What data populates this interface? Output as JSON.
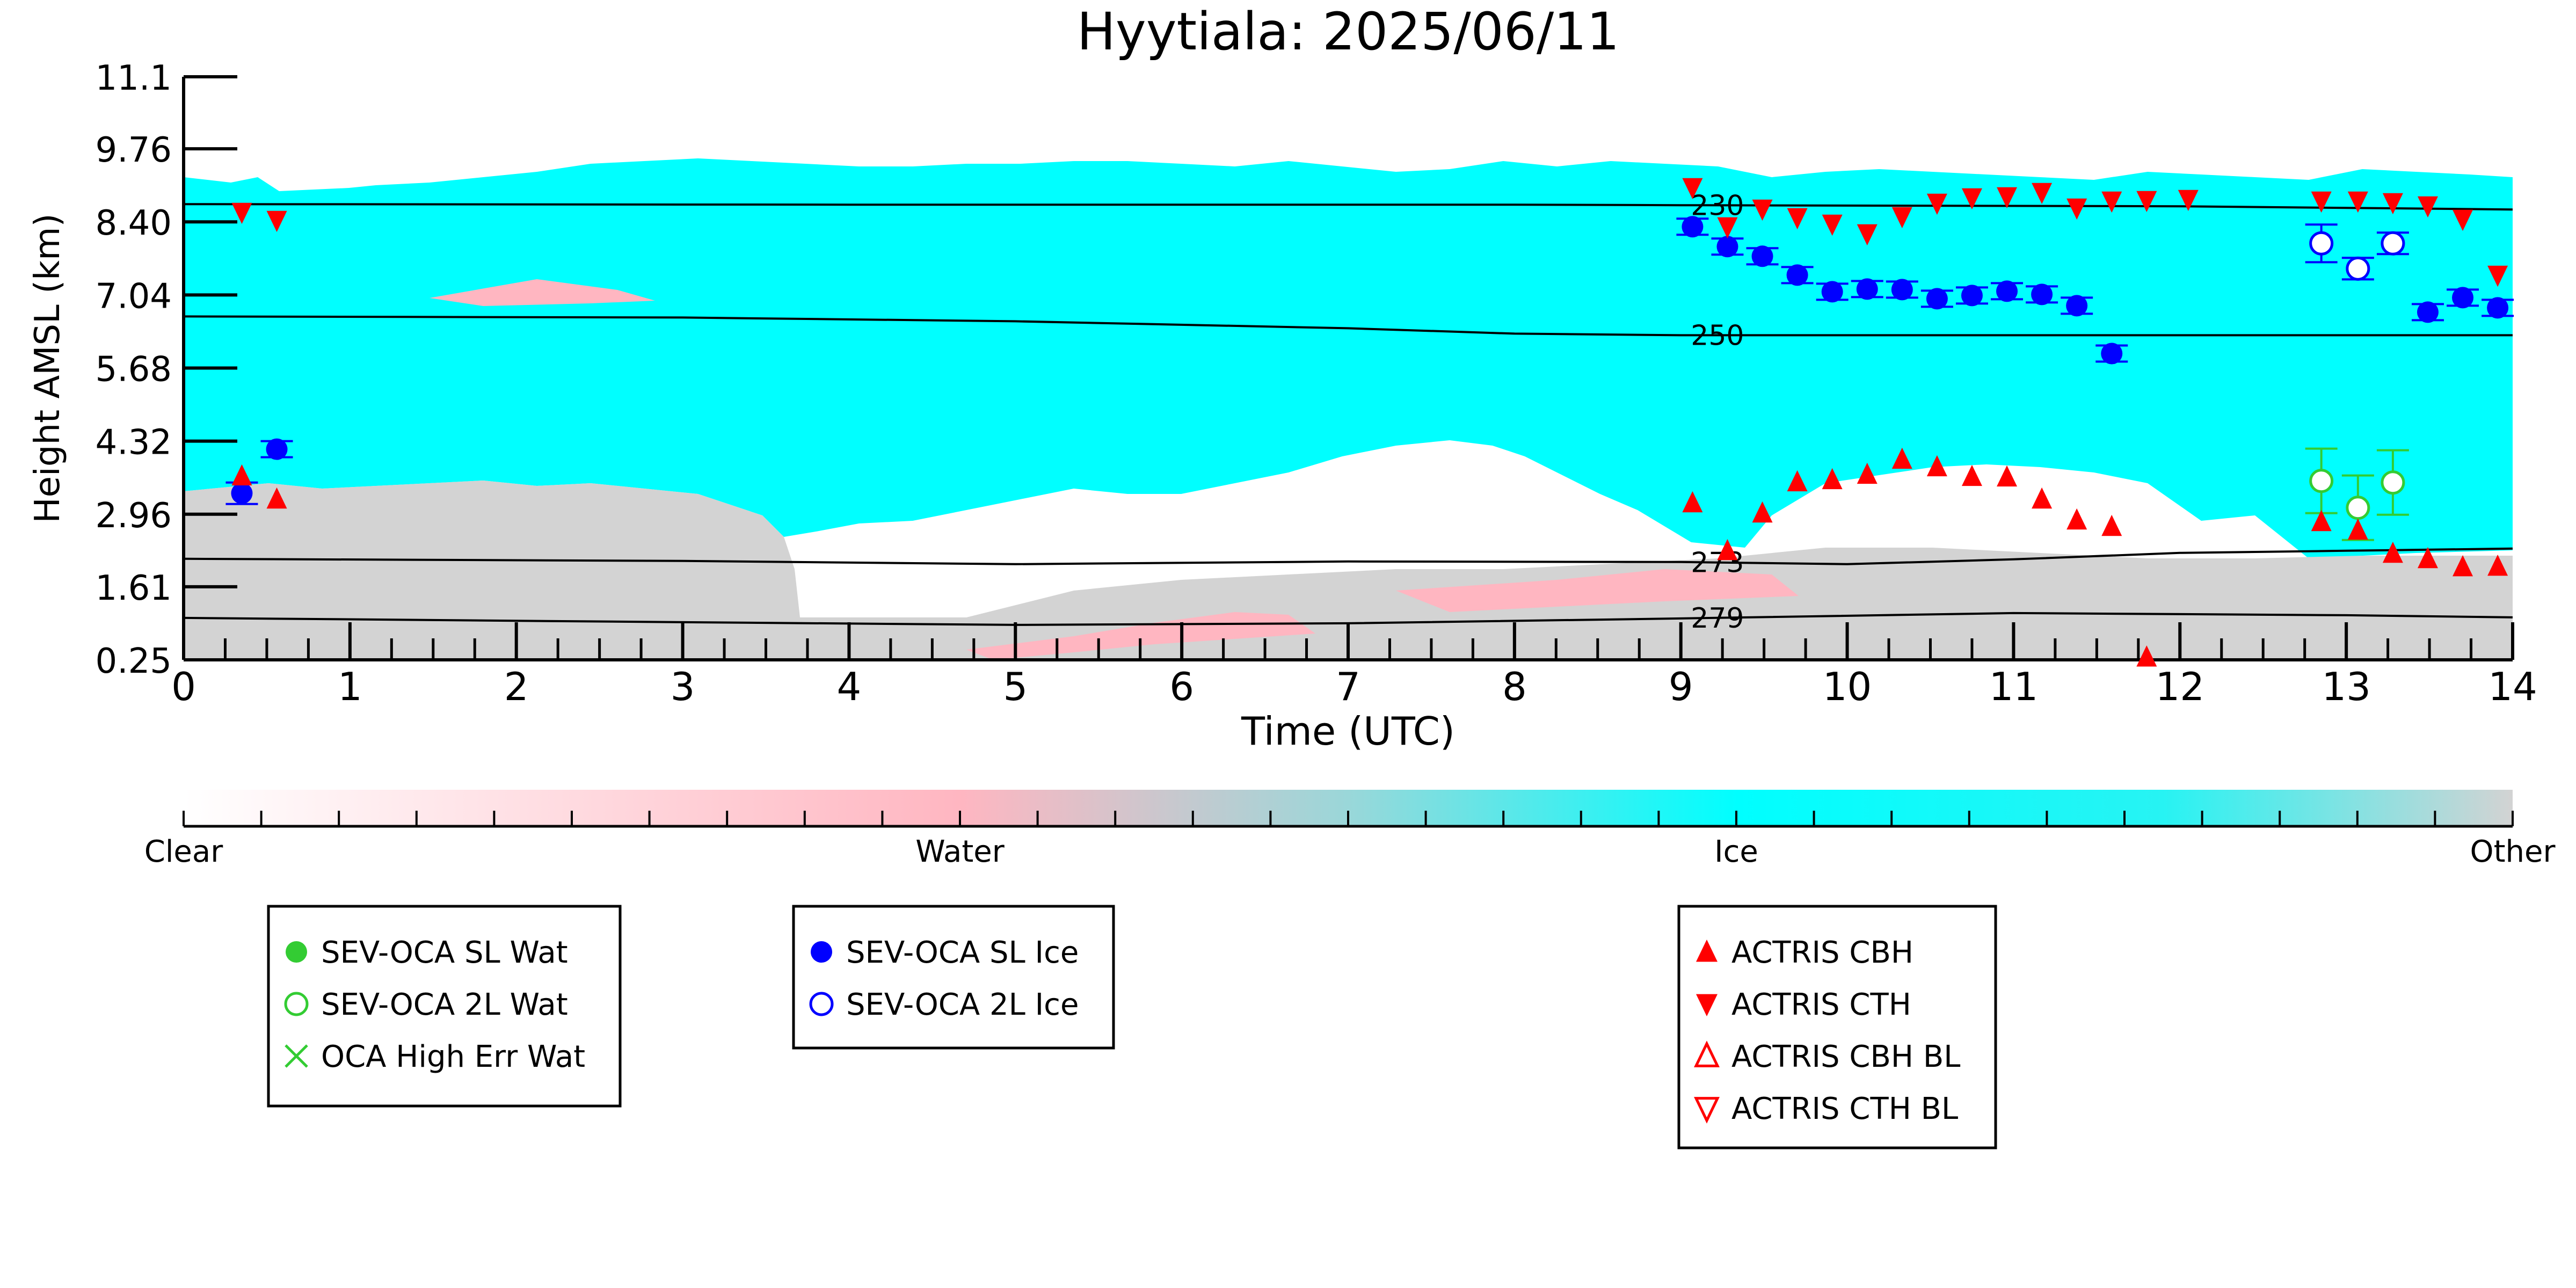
{
  "chart_data": {
    "type": "scatter",
    "title": "Hyytiala: 2025/06/11",
    "xlabel": "Time (UTC)",
    "ylabel": "Height AMSL (km)",
    "xlim": [
      0,
      14
    ],
    "ylim": [
      0.25,
      11.1
    ],
    "x_ticks": [
      "0",
      "1",
      "2",
      "3",
      "4",
      "5",
      "6",
      "7",
      "8",
      "9",
      "10",
      "11",
      "12",
      "13",
      "14"
    ],
    "y_ticks": [
      "0.25",
      "1.61",
      "2.96",
      "4.32",
      "5.68",
      "7.04",
      "8.40",
      "9.76",
      "11.1"
    ],
    "colorbar": {
      "labels": [
        "Clear",
        "Water",
        "Ice",
        "Other"
      ],
      "colors": [
        "#ffffff",
        "#ffb6c1",
        "#00ffff",
        "#d3d3d3"
      ]
    },
    "colors": {
      "ice": "#00ffff",
      "water": "#ffb6c1",
      "other": "#d3d3d3",
      "actris": "#ff0000",
      "sev_ice": "#0000ff",
      "sev_wat": "#33cc33"
    },
    "contours": [
      {
        "label": "230",
        "points": [
          [
            0,
            8.73
          ],
          [
            4,
            8.72
          ],
          [
            8,
            8.72
          ],
          [
            9,
            8.71
          ],
          [
            12,
            8.69
          ],
          [
            14,
            8.63
          ]
        ]
      },
      {
        "label": "250",
        "points": [
          [
            0,
            6.64
          ],
          [
            3,
            6.62
          ],
          [
            5,
            6.55
          ],
          [
            7,
            6.42
          ],
          [
            8,
            6.32
          ],
          [
            9,
            6.29
          ],
          [
            12,
            6.29
          ],
          [
            14,
            6.29
          ]
        ]
      },
      {
        "label": "273",
        "points": [
          [
            0,
            2.13
          ],
          [
            3,
            2.09
          ],
          [
            5,
            2.03
          ],
          [
            7,
            2.08
          ],
          [
            9,
            2.07
          ],
          [
            10,
            2.03
          ],
          [
            11,
            2.12
          ],
          [
            12,
            2.24
          ],
          [
            13,
            2.28
          ],
          [
            14,
            2.32
          ]
        ]
      },
      {
        "label": "279",
        "points": [
          [
            0,
            1.03
          ],
          [
            3,
            0.95
          ],
          [
            5,
            0.9
          ],
          [
            7,
            0.93
          ],
          [
            9,
            1.02
          ],
          [
            11,
            1.12
          ],
          [
            13,
            1.08
          ],
          [
            14,
            1.04
          ]
        ]
      }
    ],
    "series": [
      {
        "name": "SEV-OCA SL Wat",
        "marker": "circle-filled",
        "color": "#33cc33",
        "points": []
      },
      {
        "name": "SEV-OCA 2L Wat",
        "marker": "circle-open",
        "color": "#33cc33",
        "points": [
          [
            12.85,
            3.58,
            0.6
          ],
          [
            13.07,
            3.08,
            0.6
          ],
          [
            13.28,
            3.55,
            0.6
          ]
        ]
      },
      {
        "name": "OCA High Err Wat",
        "marker": "x",
        "color": "#33cc33",
        "points": []
      },
      {
        "name": "SEV-OCA SL Ice",
        "marker": "circle-filled",
        "color": "#0000ff",
        "points": [
          [
            0.35,
            3.35,
            0.2
          ],
          [
            0.56,
            4.17,
            0.15
          ],
          [
            9.07,
            8.31,
            0.15
          ],
          [
            9.28,
            7.94,
            0.15
          ],
          [
            9.49,
            7.76,
            0.15
          ],
          [
            9.7,
            7.41,
            0.15
          ],
          [
            9.91,
            7.1,
            0.15
          ],
          [
            10.12,
            7.15,
            0.15
          ],
          [
            10.33,
            7.14,
            0.15
          ],
          [
            10.54,
            6.97,
            0.15
          ],
          [
            10.75,
            7.03,
            0.15
          ],
          [
            10.96,
            7.11,
            0.15
          ],
          [
            11.17,
            7.05,
            0.15
          ],
          [
            11.38,
            6.84,
            0.15
          ],
          [
            11.59,
            5.95,
            0.15
          ],
          [
            13.49,
            6.72,
            0.15
          ],
          [
            13.7,
            6.99,
            0.15
          ],
          [
            13.91,
            6.8,
            0.15
          ]
        ]
      },
      {
        "name": "SEV-OCA 2L Ice",
        "marker": "circle-open",
        "color": "#0000ff",
        "points": [
          [
            12.85,
            8.0,
            0.35
          ],
          [
            13.07,
            7.53,
            0.2
          ],
          [
            13.28,
            8.0,
            0.2
          ]
        ]
      },
      {
        "name": "ACTRIS CBH",
        "marker": "triangle-up-filled",
        "color": "#ff0000",
        "points": [
          [
            0.35,
            3.67
          ],
          [
            0.56,
            3.24
          ],
          [
            9.07,
            3.17
          ],
          [
            9.28,
            2.28
          ],
          [
            9.49,
            2.98
          ],
          [
            9.7,
            3.56
          ],
          [
            9.91,
            3.6
          ],
          [
            10.12,
            3.7
          ],
          [
            10.33,
            3.98
          ],
          [
            10.54,
            3.84
          ],
          [
            10.75,
            3.66
          ],
          [
            10.96,
            3.65
          ],
          [
            11.17,
            3.24
          ],
          [
            11.38,
            2.85
          ],
          [
            11.59,
            2.73
          ],
          [
            11.8,
            0.3
          ],
          [
            12.85,
            2.82
          ],
          [
            13.07,
            2.66
          ],
          [
            13.28,
            2.23
          ],
          [
            13.49,
            2.13
          ],
          [
            13.7,
            1.98
          ],
          [
            13.91,
            1.99
          ]
        ]
      },
      {
        "name": "ACTRIS CTH",
        "marker": "triangle-down-filled",
        "color": "#ff0000",
        "points": [
          [
            0.35,
            8.58
          ],
          [
            0.56,
            8.43
          ],
          [
            9.07,
            9.04
          ],
          [
            9.28,
            8.31
          ],
          [
            9.49,
            8.64
          ],
          [
            9.7,
            8.48
          ],
          [
            9.91,
            8.36
          ],
          [
            10.12,
            8.18
          ],
          [
            10.33,
            8.5
          ],
          [
            10.54,
            8.75
          ],
          [
            10.75,
            8.85
          ],
          [
            10.96,
            8.87
          ],
          [
            11.17,
            8.95
          ],
          [
            11.38,
            8.66
          ],
          [
            11.59,
            8.79
          ],
          [
            11.8,
            8.8
          ],
          [
            12.05,
            8.82
          ],
          [
            12.85,
            8.79
          ],
          [
            13.07,
            8.79
          ],
          [
            13.28,
            8.76
          ],
          [
            13.49,
            8.7
          ],
          [
            13.7,
            8.45
          ],
          [
            13.91,
            7.41
          ]
        ]
      },
      {
        "name": "ACTRIS CBH BL",
        "marker": "triangle-up-open",
        "color": "#ff0000",
        "points": []
      },
      {
        "name": "ACTRIS CTH BL",
        "marker": "triangle-down-open",
        "color": "#ff0000",
        "points": []
      }
    ],
    "legend_groups": [
      [
        "SEV-OCA SL Wat",
        "SEV-OCA 2L Wat",
        "OCA High Err Wat"
      ],
      [
        "SEV-OCA SL Ice",
        "SEV-OCA 2L Ice"
      ],
      [
        "ACTRIS CBH",
        "ACTRIS CTH",
        "ACTRIS CBH BL",
        "ACTRIS CTH BL"
      ]
    ]
  }
}
